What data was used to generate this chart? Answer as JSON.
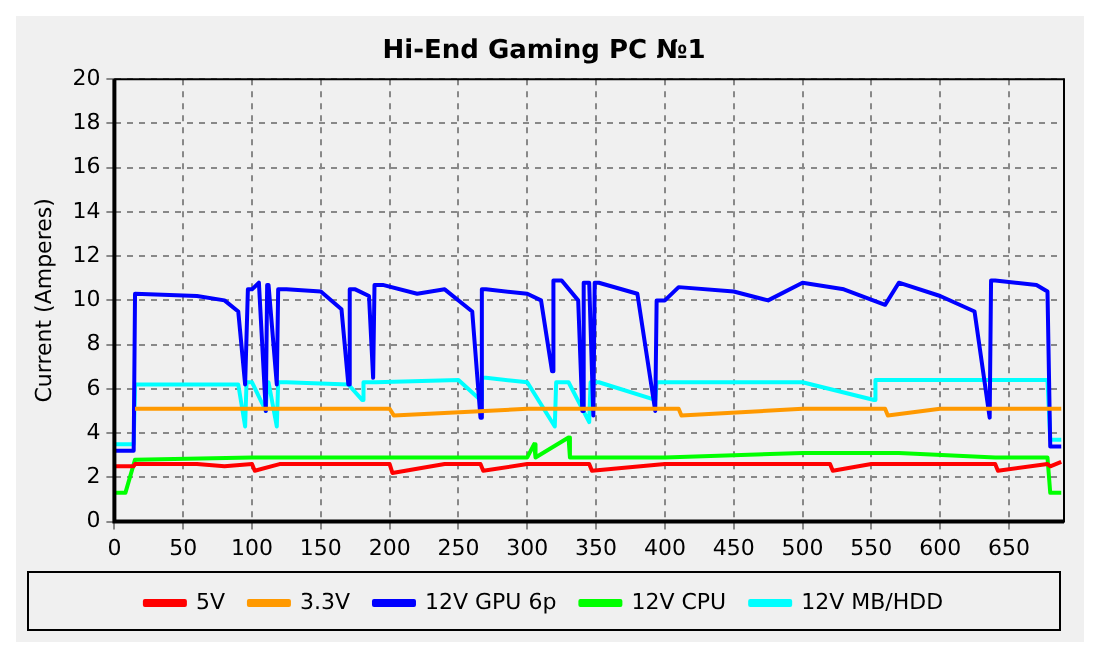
{
  "chart_data": {
    "type": "line",
    "title": "Hi-End Gaming PC №1",
    "ylabel": "Current (Amperes)",
    "xlim": [
      0,
      690
    ],
    "xticks": [
      0,
      50,
      100,
      150,
      200,
      250,
      300,
      350,
      400,
      450,
      500,
      550,
      600,
      650
    ],
    "ylim": [
      0,
      20
    ],
    "yticks": [
      0,
      2,
      4,
      6,
      8,
      10,
      12,
      14,
      16,
      18,
      20
    ],
    "grid": true,
    "legend": "bottom",
    "marker": "none",
    "line_style": "solid",
    "series": [
      {
        "name": "5V",
        "color": "#ff0000",
        "x": [
          0,
          14,
          15,
          40,
          60,
          80,
          100,
          102,
          120,
          125,
          150,
          200,
          202,
          240,
          266,
          268,
          300,
          345,
          347,
          400,
          450,
          500,
          520,
          522,
          550,
          600,
          640,
          642,
          678,
          680,
          688
        ],
        "values": [
          2.5,
          2.5,
          2.6,
          2.6,
          2.6,
          2.5,
          2.6,
          2.3,
          2.6,
          2.6,
          2.6,
          2.6,
          2.2,
          2.6,
          2.6,
          2.3,
          2.6,
          2.6,
          2.3,
          2.6,
          2.6,
          2.6,
          2.6,
          2.3,
          2.6,
          2.6,
          2.6,
          2.3,
          2.6,
          2.5,
          2.7
        ]
      },
      {
        "name": "3.3V",
        "color": "#ff9900",
        "x": [
          15,
          50,
          100,
          200,
          203,
          300,
          400,
          410,
          412,
          500,
          560,
          562,
          600,
          640,
          660,
          688
        ],
        "values": [
          5.1,
          5.1,
          5.1,
          5.1,
          4.8,
          5.1,
          5.1,
          5.1,
          4.8,
          5.1,
          5.1,
          4.8,
          5.1,
          5.1,
          5.1,
          5.1
        ]
      },
      {
        "name": "12V GPU 6p",
        "color": "#0000ff",
        "x": [
          0,
          14,
          15,
          60,
          80,
          90,
          95,
          97,
          100,
          105,
          110,
          111,
          112,
          118,
          119,
          125,
          150,
          165,
          170,
          171,
          175,
          185,
          188,
          189,
          195,
          220,
          240,
          260,
          266,
          267,
          270,
          300,
          310,
          318,
          319,
          325,
          337,
          340,
          341,
          345,
          348,
          349,
          352,
          380,
          393,
          394,
          400,
          410,
          450,
          475,
          500,
          530,
          560,
          570,
          600,
          625,
          636,
          637,
          640,
          670,
          678,
          680,
          688
        ],
        "values": [
          3.2,
          3.2,
          10.3,
          10.2,
          10,
          9.5,
          6.2,
          10.5,
          10.5,
          10.8,
          5,
          10.7,
          10.7,
          6.2,
          10.5,
          10.5,
          10.4,
          9.6,
          6.2,
          10.5,
          10.5,
          10.2,
          6.5,
          10.7,
          10.7,
          10.3,
          10.5,
          9.5,
          4.7,
          10.5,
          10.5,
          10.3,
          10,
          6.8,
          10.9,
          10.9,
          10,
          5,
          10.8,
          10.8,
          4.8,
          10.8,
          10.8,
          10.3,
          5,
          10,
          10,
          10.6,
          10.4,
          10,
          10.8,
          10.5,
          9.8,
          10.8,
          10.2,
          9.5,
          4.7,
          10.9,
          10.9,
          10.7,
          10.4,
          3.4,
          3.4
        ]
      },
      {
        "name": "12V CPU",
        "color": "#00ff00",
        "x": [
          0,
          8,
          15,
          100,
          200,
          300,
          305,
          306,
          330,
          331,
          400,
          500,
          570,
          640,
          678,
          680,
          688
        ],
        "values": [
          1.3,
          1.3,
          2.8,
          2.9,
          2.9,
          2.9,
          3.5,
          2.9,
          3.8,
          2.9,
          2.9,
          3.1,
          3.1,
          2.9,
          2.9,
          1.3,
          1.3
        ]
      },
      {
        "name": "12V MB/HDD",
        "color": "#00ffff",
        "x": [
          0,
          14,
          15,
          90,
          95,
          96,
          100,
          110,
          111,
          112,
          118,
          119,
          125,
          170,
          180,
          181,
          190,
          250,
          266,
          267,
          270,
          300,
          320,
          321,
          330,
          345,
          346,
          352,
          393,
          394,
          400,
          500,
          552,
          553,
          560,
          640,
          678,
          680,
          688
        ],
        "values": [
          3.5,
          3.5,
          6.2,
          6.2,
          4.3,
          6.3,
          6.3,
          5,
          6.3,
          6.3,
          4.3,
          6.3,
          6.3,
          6.2,
          5.5,
          6.3,
          6.3,
          6.4,
          5.5,
          6.5,
          6.5,
          6.3,
          4.3,
          6.3,
          6.3,
          4.5,
          6.3,
          6.3,
          5.5,
          6.3,
          6.3,
          6.3,
          5.5,
          6.4,
          6.4,
          6.4,
          6.4,
          3.7,
          3.7
        ]
      }
    ]
  }
}
